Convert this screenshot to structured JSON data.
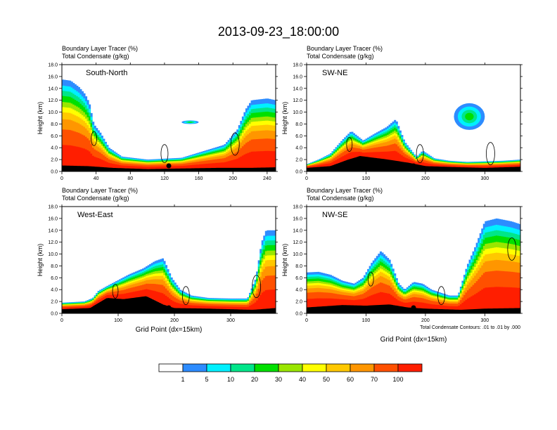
{
  "figure_title": "2013-09-23_18:00:00",
  "chart_data": [
    {
      "type": "heatmap",
      "panel": "South-North",
      "title": "South-North",
      "left_label_1": "Boundary Layer Tracer   (%)",
      "left_label_2": "Total Condensate   (g/kg)",
      "xlabel": "",
      "ylabel": "Height (km)",
      "xlim": [
        0,
        250
      ],
      "ylim": [
        0,
        18
      ],
      "xticks": [
        0,
        40,
        80,
        120,
        160,
        200,
        240
      ],
      "yticks": [
        "0.0",
        "2.0",
        "4.0",
        "6.0",
        "8.0",
        "10.0",
        "12.0",
        "14.0",
        "16.0",
        "18.0"
      ],
      "marker_x": 125,
      "terrain": [
        [
          0,
          1.0
        ],
        [
          30,
          0.9
        ],
        [
          60,
          0.6
        ],
        [
          100,
          0.4
        ],
        [
          140,
          0.5
        ],
        [
          180,
          0.6
        ],
        [
          220,
          0.6
        ],
        [
          250,
          0.7
        ]
      ],
      "tracer_top": [
        [
          0,
          15.5
        ],
        [
          10,
          15.3
        ],
        [
          20,
          14.2
        ],
        [
          27,
          13.0
        ],
        [
          32,
          11.5
        ],
        [
          37,
          8.0
        ],
        [
          45,
          6.5
        ],
        [
          55,
          4.0
        ],
        [
          70,
          2.5
        ],
        [
          100,
          2.0
        ],
        [
          140,
          2.3
        ],
        [
          165,
          3.4
        ],
        [
          190,
          4.5
        ],
        [
          205,
          7.0
        ],
        [
          215,
          10.5
        ],
        [
          222,
          12.0
        ],
        [
          240,
          12.3
        ],
        [
          250,
          12.0
        ]
      ],
      "extras": [
        {
          "x": [
            140,
            160
          ],
          "y": [
            8.0,
            8.6
          ]
        }
      ]
    },
    {
      "type": "heatmap",
      "panel": "SW-NE",
      "title": "SW-NE",
      "left_label_1": "Boundary Layer Tracer   (%)",
      "left_label_2": "Total Condensate   (g/kg)",
      "xlabel": "",
      "ylabel": "Height (km)",
      "xlim": [
        0,
        360
      ],
      "ylim": [
        0,
        18
      ],
      "xticks": [
        0,
        100,
        200,
        300
      ],
      "yticks": [
        "0.0",
        "2.0",
        "4.0",
        "6.0",
        "8.0",
        "10.0",
        "12.0",
        "14.0",
        "16.0",
        "18.0"
      ],
      "marker_x": 180,
      "terrain": [
        [
          0,
          0.6
        ],
        [
          40,
          0.9
        ],
        [
          70,
          2.0
        ],
        [
          90,
          2.6
        ],
        [
          130,
          2.1
        ],
        [
          170,
          1.5
        ],
        [
          200,
          0.9
        ],
        [
          260,
          0.7
        ],
        [
          300,
          0.6
        ],
        [
          360,
          0.8
        ]
      ],
      "tracer_top": [
        [
          0,
          1.2
        ],
        [
          20,
          2.0
        ],
        [
          40,
          3.0
        ],
        [
          60,
          5.3
        ],
        [
          75,
          6.8
        ],
        [
          95,
          5.2
        ],
        [
          115,
          6.4
        ],
        [
          135,
          7.5
        ],
        [
          150,
          8.8
        ],
        [
          165,
          5.0
        ],
        [
          185,
          2.4
        ],
        [
          195,
          3.5
        ],
        [
          215,
          2.2
        ],
        [
          240,
          1.8
        ],
        [
          270,
          1.6
        ],
        [
          300,
          1.7
        ],
        [
          330,
          1.8
        ],
        [
          360,
          2.0
        ]
      ],
      "extras": [
        {
          "x": [
            248,
            300
          ],
          "y": [
            7.0,
            11.5
          ]
        }
      ]
    },
    {
      "type": "heatmap",
      "panel": "West-East",
      "title": "West-East",
      "left_label_1": "Boundary Layer Tracer   (%)",
      "left_label_2": "Total Condensate   (g/kg)",
      "xlabel": "Grid Point (dx=15km)",
      "ylabel": "Height (km)",
      "xlim": [
        0,
        380
      ],
      "ylim": [
        0,
        18
      ],
      "xticks": [
        0,
        100,
        200,
        300
      ],
      "yticks": [
        "0.0",
        "2.0",
        "4.0",
        "6.0",
        "8.0",
        "10.0",
        "12.0",
        "14.0",
        "16.0",
        "18.0"
      ],
      "marker_x": 190,
      "terrain": [
        [
          0,
          0.7
        ],
        [
          50,
          0.9
        ],
        [
          80,
          2.6
        ],
        [
          110,
          2.4
        ],
        [
          150,
          2.9
        ],
        [
          180,
          1.5
        ],
        [
          200,
          0.9
        ],
        [
          260,
          0.8
        ],
        [
          340,
          0.6
        ],
        [
          380,
          0.9
        ]
      ],
      "tracer_top": [
        [
          0,
          1.8
        ],
        [
          40,
          2.0
        ],
        [
          55,
          2.6
        ],
        [
          65,
          3.8
        ],
        [
          80,
          4.6
        ],
        [
          100,
          5.6
        ],
        [
          120,
          6.6
        ],
        [
          145,
          7.6
        ],
        [
          165,
          8.8
        ],
        [
          180,
          9.3
        ],
        [
          195,
          6.0
        ],
        [
          210,
          4.0
        ],
        [
          230,
          3.0
        ],
        [
          260,
          2.6
        ],
        [
          300,
          2.5
        ],
        [
          330,
          2.5
        ],
        [
          345,
          6.0
        ],
        [
          355,
          12.0
        ],
        [
          363,
          14.0
        ],
        [
          380,
          14.0
        ]
      ],
      "extras": []
    },
    {
      "type": "heatmap",
      "panel": "NW-SE",
      "title": "NW-SE",
      "left_label_1": "Boundary Layer Tracer   (%)",
      "left_label_2": "Total Condensate   (g/kg)",
      "xlabel": "Grid Point (dx=15km)",
      "ylabel": "Height (km)",
      "contour_note": "Total Condensate Contours: .01 to .01 by .000",
      "xlim": [
        0,
        360
      ],
      "ylim": [
        0,
        18
      ],
      "xticks": [
        0,
        100,
        200,
        300
      ],
      "yticks": [
        "0.0",
        "2.0",
        "4.0",
        "6.0",
        "8.0",
        "10.0",
        "12.0",
        "14.0",
        "16.0",
        "18.0"
      ],
      "marker_x": 180,
      "terrain": [
        [
          0,
          1.0
        ],
        [
          60,
          1.4
        ],
        [
          100,
          1.3
        ],
        [
          140,
          1.5
        ],
        [
          170,
          1.0
        ],
        [
          200,
          0.8
        ],
        [
          260,
          0.6
        ],
        [
          300,
          0.8
        ],
        [
          360,
          0.9
        ]
      ],
      "tracer_top": [
        [
          0,
          6.9
        ],
        [
          20,
          7.0
        ],
        [
          40,
          6.5
        ],
        [
          60,
          5.5
        ],
        [
          80,
          5.0
        ],
        [
          95,
          6.0
        ],
        [
          110,
          8.6
        ],
        [
          125,
          10.5
        ],
        [
          140,
          9.0
        ],
        [
          155,
          5.0
        ],
        [
          165,
          4.0
        ],
        [
          180,
          5.3
        ],
        [
          195,
          5.0
        ],
        [
          210,
          4.0
        ],
        [
          225,
          3.5
        ],
        [
          240,
          3.0
        ],
        [
          255,
          3.0
        ],
        [
          270,
          8.0
        ],
        [
          285,
          11.5
        ],
        [
          300,
          15.5
        ],
        [
          320,
          16.0
        ],
        [
          345,
          15.5
        ],
        [
          360,
          15.0
        ]
      ],
      "extras": []
    }
  ],
  "colorbar": {
    "labels": [
      "1",
      "5",
      "10",
      "20",
      "30",
      "40",
      "50",
      "60",
      "70",
      "100"
    ],
    "colors": [
      "#ffffff",
      "#2d8cff",
      "#00f0ff",
      "#00e68a",
      "#00e000",
      "#9ae600",
      "#ffff00",
      "#ffc800",
      "#ff9600",
      "#ff5000",
      "#ff1e00"
    ]
  }
}
